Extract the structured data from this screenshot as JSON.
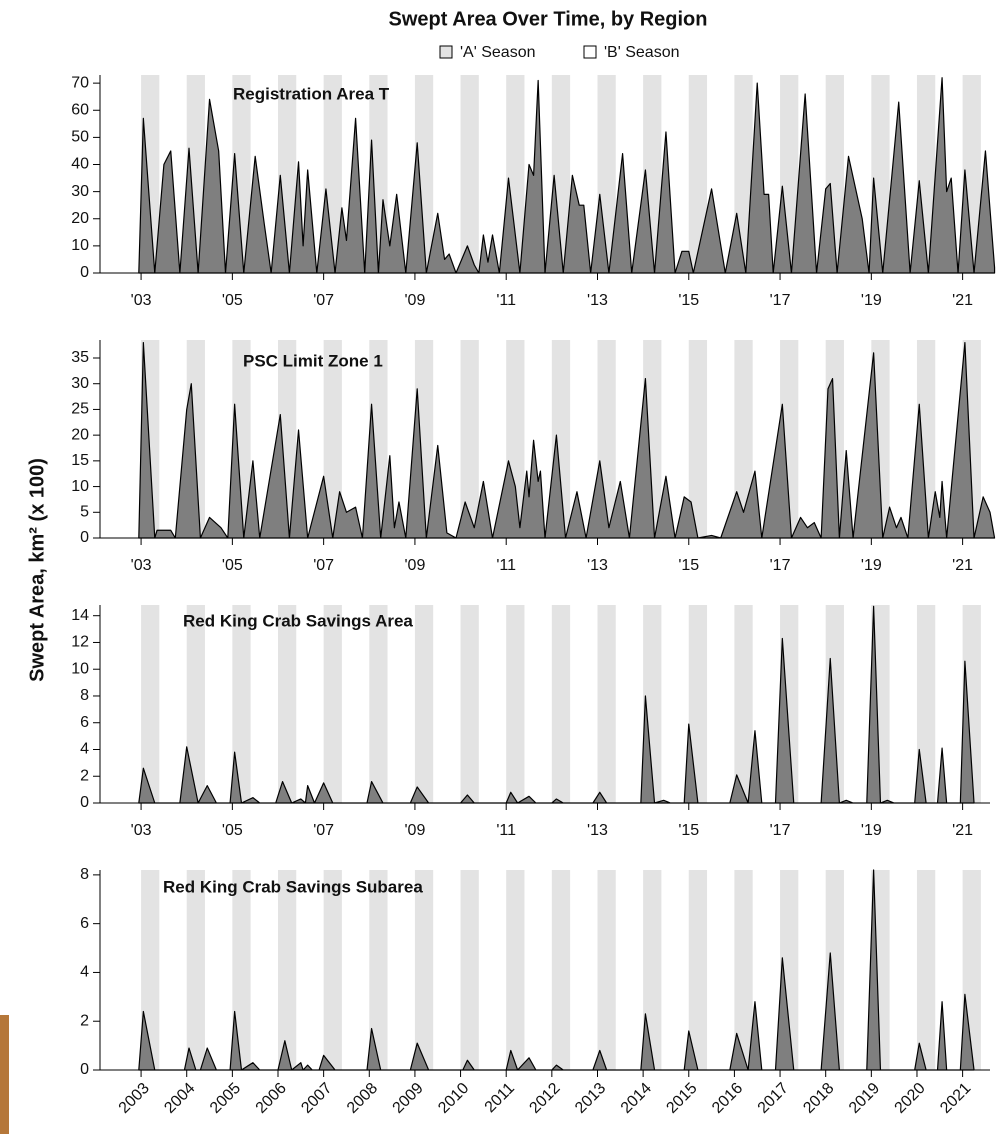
{
  "figure": {
    "title": "Swept Area Over Time, by Region",
    "ylabel": "Swept Area, km² (x 100)",
    "legend": [
      {
        "name": "'A' Season",
        "color": "#e3e3e3"
      },
      {
        "name": "'B' Season",
        "color": "#ffffff"
      }
    ],
    "a_season_span": [
      0,
      0.4
    ]
  },
  "chart_data": [
    {
      "type": "area",
      "title": "Registration Area T",
      "color": "#7f7f7f",
      "xlim": [
        2002.1,
        2021.6
      ],
      "ylim": [
        0,
        73
      ],
      "yticks": [
        0,
        10,
        20,
        30,
        40,
        50,
        60,
        70
      ],
      "xticks": [
        {
          "value": 2003,
          "label": "'03"
        },
        {
          "value": 2005,
          "label": "'05"
        },
        {
          "value": 2007,
          "label": "'07"
        },
        {
          "value": 2009,
          "label": "'09"
        },
        {
          "value": 2011,
          "label": "'11"
        },
        {
          "value": 2013,
          "label": "'13"
        },
        {
          "value": 2015,
          "label": "'15"
        },
        {
          "value": 2017,
          "label": "'17"
        },
        {
          "value": 2019,
          "label": "'19"
        },
        {
          "value": 2021,
          "label": "'21"
        }
      ],
      "x": [
        2002.95,
        2003.05,
        2003.3,
        2003.5,
        2003.65,
        2003.85,
        2004.05,
        2004.25,
        2004.5,
        2004.7,
        2004.85,
        2005.05,
        2005.25,
        2005.5,
        2005.7,
        2005.85,
        2006.05,
        2006.25,
        2006.45,
        2006.55,
        2006.65,
        2006.85,
        2007.05,
        2007.25,
        2007.4,
        2007.5,
        2007.7,
        2007.9,
        2008.05,
        2008.2,
        2008.3,
        2008.45,
        2008.6,
        2008.8,
        2009.05,
        2009.25,
        2009.5,
        2009.65,
        2009.75,
        2009.9,
        2010.15,
        2010.3,
        2010.4,
        2010.5,
        2010.6,
        2010.7,
        2010.85,
        2011.05,
        2011.3,
        2011.5,
        2011.6,
        2011.7,
        2011.85,
        2012.05,
        2012.25,
        2012.45,
        2012.6,
        2012.7,
        2012.85,
        2013.05,
        2013.25,
        2013.55,
        2013.75,
        2014.05,
        2014.25,
        2014.5,
        2014.7,
        2014.85,
        2015.0,
        2015.1,
        2015.5,
        2015.8,
        2016.05,
        2016.25,
        2016.5,
        2016.65,
        2016.75,
        2016.85,
        2017.05,
        2017.25,
        2017.55,
        2017.8,
        2018.0,
        2018.1,
        2018.25,
        2018.5,
        2018.8,
        2018.95,
        2019.05,
        2019.25,
        2019.6,
        2019.85,
        2020.05,
        2020.25,
        2020.55,
        2020.65,
        2020.75,
        2020.9,
        2021.05,
        2021.25,
        2021.5,
        2021.7
      ],
      "values": [
        0,
        57,
        0,
        40,
        45,
        0,
        46,
        0,
        64,
        45,
        0,
        44,
        0,
        43,
        18,
        0,
        36,
        0,
        41,
        10,
        38,
        0,
        31,
        0,
        24,
        12,
        57,
        0,
        49,
        0,
        27,
        10,
        29,
        0,
        48,
        0,
        22,
        5,
        7,
        0,
        10,
        3,
        0,
        14,
        4,
        14,
        0,
        35,
        0,
        40,
        36,
        71,
        0,
        36,
        0,
        36,
        25,
        25,
        0,
        29,
        0,
        44,
        0,
        38,
        0,
        52,
        0,
        8,
        8,
        0,
        31,
        0,
        22,
        0,
        70,
        29,
        29,
        0,
        32,
        0,
        66,
        0,
        31,
        33,
        0,
        43,
        20,
        0,
        35,
        0,
        63,
        0,
        34,
        0,
        72,
        30,
        35,
        0,
        38,
        0,
        45,
        2
      ]
    },
    {
      "type": "area",
      "title": "PSC Limit Zone 1",
      "color": "#7f7f7f",
      "xlim": [
        2002.1,
        2021.6
      ],
      "ylim": [
        0,
        38.5
      ],
      "yticks": [
        0,
        5,
        10,
        15,
        20,
        25,
        30,
        35
      ],
      "xticks": [
        {
          "value": 2003,
          "label": "'03"
        },
        {
          "value": 2005,
          "label": "'05"
        },
        {
          "value": 2007,
          "label": "'07"
        },
        {
          "value": 2009,
          "label": "'09"
        },
        {
          "value": 2011,
          "label": "'11"
        },
        {
          "value": 2013,
          "label": "'13"
        },
        {
          "value": 2015,
          "label": "'15"
        },
        {
          "value": 2017,
          "label": "'17"
        },
        {
          "value": 2019,
          "label": "'19"
        },
        {
          "value": 2021,
          "label": "'21"
        }
      ],
      "x": [
        2002.95,
        2003.05,
        2003.3,
        2003.35,
        2003.65,
        2003.75,
        2004.0,
        2004.1,
        2004.3,
        2004.5,
        2004.75,
        2004.9,
        2005.05,
        2005.25,
        2005.45,
        2005.6,
        2006.05,
        2006.25,
        2006.45,
        2006.65,
        2007.0,
        2007.2,
        2007.35,
        2007.5,
        2007.7,
        2007.85,
        2008.05,
        2008.25,
        2008.45,
        2008.55,
        2008.65,
        2008.8,
        2009.05,
        2009.25,
        2009.5,
        2009.7,
        2009.9,
        2010.1,
        2010.3,
        2010.5,
        2010.7,
        2011.05,
        2011.2,
        2011.3,
        2011.45,
        2011.5,
        2011.6,
        2011.7,
        2011.75,
        2011.85,
        2012.1,
        2012.3,
        2012.55,
        2012.75,
        2013.05,
        2013.25,
        2013.5,
        2013.7,
        2014.05,
        2014.25,
        2014.5,
        2014.7,
        2014.9,
        2015.05,
        2015.2,
        2015.5,
        2015.7,
        2016.05,
        2016.2,
        2016.45,
        2016.6,
        2017.05,
        2017.25,
        2017.45,
        2017.6,
        2017.75,
        2017.9,
        2018.05,
        2018.15,
        2018.3,
        2018.45,
        2018.6,
        2019.05,
        2019.25,
        2019.4,
        2019.55,
        2019.65,
        2019.8,
        2020.05,
        2020.25,
        2020.4,
        2020.5,
        2020.55,
        2020.65,
        2021.05,
        2021.25,
        2021.45,
        2021.6,
        2021.7
      ],
      "values": [
        0,
        38,
        0,
        1.5,
        1.5,
        0,
        25,
        30,
        0,
        4,
        2,
        0,
        26,
        0,
        15,
        0,
        24,
        0,
        21,
        0,
        12,
        0,
        9,
        5,
        6,
        0,
        26,
        0,
        16,
        2,
        7,
        0,
        29,
        0,
        18,
        1,
        0,
        7,
        2,
        11,
        0,
        15,
        10,
        2,
        13,
        8,
        19,
        11,
        13,
        0,
        20,
        0,
        9,
        0,
        15,
        2,
        11,
        0,
        31,
        0,
        12,
        0,
        8,
        7,
        0,
        0.5,
        0,
        9,
        5,
        13,
        0,
        26,
        0,
        4,
        2,
        3,
        0,
        29,
        31,
        0,
        17,
        0,
        36,
        0,
        6,
        2,
        4,
        0,
        26,
        0,
        9,
        4,
        11,
        0,
        38,
        0,
        8,
        5,
        0
      ]
    },
    {
      "type": "area",
      "title": "Red King Crab Savings Area",
      "color": "#7f7f7f",
      "xlim": [
        2002.1,
        2021.6
      ],
      "ylim": [
        0,
        14.8
      ],
      "yticks": [
        0,
        2,
        4,
        6,
        8,
        10,
        12,
        14
      ],
      "xticks": [
        {
          "value": 2003,
          "label": "'03"
        },
        {
          "value": 2005,
          "label": "'05"
        },
        {
          "value": 2007,
          "label": "'07"
        },
        {
          "value": 2009,
          "label": "'09"
        },
        {
          "value": 2011,
          "label": "'11"
        },
        {
          "value": 2013,
          "label": "'13"
        },
        {
          "value": 2015,
          "label": "'15"
        },
        {
          "value": 2017,
          "label": "'17"
        },
        {
          "value": 2019,
          "label": "'19"
        },
        {
          "value": 2021,
          "label": "'21"
        }
      ],
      "x": [
        2002.95,
        2003.05,
        2003.3,
        2003.85,
        2004.0,
        2004.25,
        2004.45,
        2004.65,
        2004.95,
        2005.05,
        2005.2,
        2005.45,
        2005.6,
        2005.95,
        2006.1,
        2006.3,
        2006.5,
        2006.6,
        2006.65,
        2006.8,
        2007.0,
        2007.2,
        2007.95,
        2008.05,
        2008.3,
        2008.9,
        2009.05,
        2009.3,
        2010.0,
        2010.15,
        2010.3,
        2011.0,
        2011.1,
        2011.25,
        2011.5,
        2011.65,
        2012.0,
        2012.1,
        2012.25,
        2012.9,
        2013.05,
        2013.2,
        2013.95,
        2014.05,
        2014.25,
        2014.45,
        2014.6,
        2014.9,
        2015.0,
        2015.2,
        2015.9,
        2016.05,
        2016.3,
        2016.45,
        2016.6,
        2016.9,
        2017.05,
        2017.3,
        2017.9,
        2018.1,
        2018.3,
        2018.45,
        2018.6,
        2018.9,
        2019.05,
        2019.2,
        2019.35,
        2019.5,
        2019.95,
        2020.05,
        2020.2,
        2020.45,
        2020.55,
        2020.65,
        2020.95,
        2021.05,
        2021.25
      ],
      "values": [
        0,
        2.6,
        0,
        0,
        4.2,
        0,
        1.3,
        0,
        0,
        3.8,
        0,
        0.4,
        0,
        0,
        1.6,
        0,
        0.3,
        0,
        1.3,
        0,
        1.5,
        0,
        0,
        1.6,
        0,
        0,
        1.2,
        0,
        0,
        0.6,
        0,
        0,
        0.8,
        0,
        0.5,
        0,
        0,
        0.3,
        0,
        0,
        0.8,
        0,
        0,
        8,
        0,
        0.2,
        0,
        0,
        5.9,
        0,
        0,
        2.1,
        0,
        5.4,
        0,
        0,
        12.3,
        0,
        0,
        10.8,
        0,
        0.2,
        0,
        0,
        14.7,
        0,
        0.2,
        0,
        0,
        4,
        0,
        0,
        4.1,
        0,
        0,
        10.6,
        0
      ]
    },
    {
      "type": "area",
      "title": "Red King Crab Savings Subarea",
      "color": "#7f7f7f",
      "xlim": [
        2002.1,
        2021.6
      ],
      "ylim": [
        0,
        8.2
      ],
      "yticks": [
        0,
        2,
        4,
        6,
        8
      ],
      "xticks": [
        2003,
        2004,
        2005,
        2006,
        2007,
        2008,
        2009,
        2010,
        2011,
        2012,
        2013,
        2014,
        2015,
        2016,
        2017,
        2018,
        2019,
        2020,
        2021
      ],
      "x": [
        2002.95,
        2003.05,
        2003.3,
        2003.95,
        2004.05,
        2004.2,
        2004.3,
        2004.45,
        2004.65,
        2004.95,
        2005.05,
        2005.2,
        2005.45,
        2005.6,
        2006.0,
        2006.15,
        2006.3,
        2006.5,
        2006.55,
        2006.65,
        2006.75,
        2006.9,
        2007.0,
        2007.25,
        2007.95,
        2008.05,
        2008.25,
        2008.9,
        2009.05,
        2009.3,
        2010.05,
        2010.15,
        2010.3,
        2011.0,
        2011.1,
        2011.25,
        2011.5,
        2011.65,
        2012.0,
        2012.1,
        2012.25,
        2012.9,
        2013.05,
        2013.2,
        2013.95,
        2014.05,
        2014.25,
        2014.9,
        2015.0,
        2015.2,
        2015.9,
        2016.05,
        2016.3,
        2016.45,
        2016.6,
        2016.9,
        2017.05,
        2017.3,
        2017.9,
        2018.1,
        2018.3,
        2018.9,
        2019.05,
        2019.2,
        2019.95,
        2020.05,
        2020.2,
        2020.45,
        2020.55,
        2020.65,
        2020.95,
        2021.05,
        2021.25
      ],
      "values": [
        0,
        2.4,
        0,
        0,
        0.9,
        0,
        0,
        0.9,
        0,
        0,
        2.4,
        0,
        0.3,
        0,
        0,
        1.2,
        0,
        0.3,
        0,
        0.2,
        0,
        0,
        0.6,
        0,
        0,
        1.7,
        0,
        0,
        1.1,
        0,
        0,
        0.4,
        0,
        0,
        0.8,
        0,
        0.5,
        0,
        0,
        0.2,
        0,
        0,
        0.8,
        0,
        0,
        2.3,
        0,
        0,
        1.6,
        0,
        0,
        1.5,
        0,
        2.8,
        0,
        0,
        4.6,
        0,
        0,
        4.8,
        0,
        0,
        8.2,
        0,
        0,
        1.1,
        0,
        0,
        2.8,
        0,
        0,
        3.1,
        0
      ]
    }
  ]
}
